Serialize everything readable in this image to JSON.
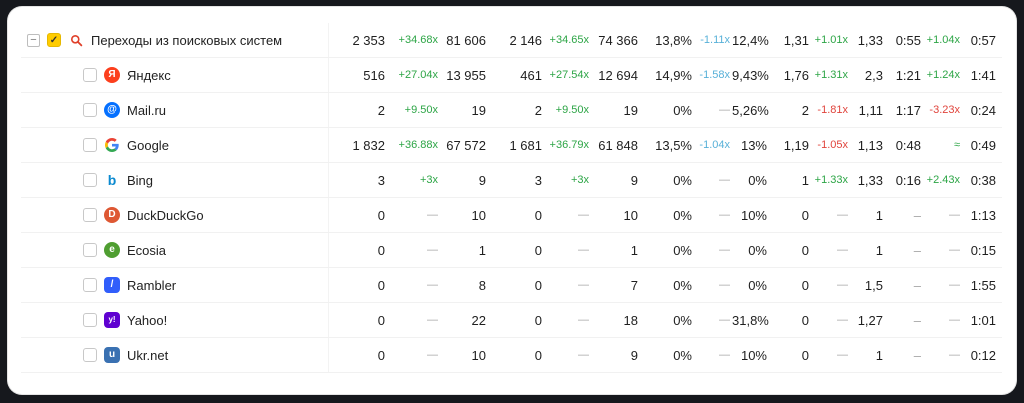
{
  "colors": {
    "positive_change": "#2da546",
    "negative_change": "#e0443c",
    "bounce_decrease": "#57b0d8",
    "no_data_dash": "#a6a6a6",
    "value_text": "#1f1f1f",
    "row_border": "#f1f1f1",
    "card_background": "#ffffff",
    "page_background": "#16181d",
    "checkbox_checked": "#ffcc00",
    "magnifier": "#e0402a"
  },
  "columns": [
    "visits-a",
    "visits-change",
    "visits-b",
    "visitors-a",
    "visitors-change",
    "visitors-b",
    "bounce-a",
    "bounce-change",
    "bounce-b",
    "depth-a",
    "depth-change",
    "depth-b",
    "time-a",
    "time-change",
    "time-b"
  ],
  "group": {
    "label": "Переходы из поисковых систем",
    "icon": "search-icon",
    "checked": true,
    "collapse_glyph": "−",
    "check_glyph": "✓",
    "cells": [
      "2 353|d",
      "+34.68x|g",
      "81 606|d",
      "2 146|d",
      "+34.65x|g",
      "74 366|d",
      "13,8%|d",
      "-1.11x|b",
      "12,4%|d",
      "1,31|d",
      "+1.01x|g",
      "1,33|d",
      "0:55|d",
      "+1.04x|g",
      "0:57|d"
    ]
  },
  "rows": [
    {
      "label": "Яндекс",
      "icon": "yandex-icon",
      "cells": [
        "516|d",
        "+27.04x|g",
        "13 955|d",
        "461|d",
        "+27.54x|g",
        "12 694|d",
        "14,9%|d",
        "-1.58x|b",
        "9,43%|d",
        "1,76|d",
        "+1.31x|g",
        "2,3|d",
        "1:21|d",
        "+1.24x|g",
        "1:41|d"
      ]
    },
    {
      "label": "Mail.ru",
      "icon": "mail-ru-icon",
      "cells": [
        "2|d",
        "+9.50x|g",
        "19|d",
        "2|d",
        "+9.50x|g",
        "19|d",
        "0%|d",
        "—|x",
        "5,26%|d",
        "2|d",
        "-1.81x|r",
        "1,11|d",
        "1:17|d",
        "-3.23x|r",
        "0:24|d"
      ]
    },
    {
      "label": "Google",
      "icon": "google-icon",
      "cells": [
        "1 832|d",
        "+36.88x|g",
        "67 572|d",
        "1 681|d",
        "+36.79x|g",
        "61 848|d",
        "13,5%|d",
        "-1.04x|b",
        "13%|d",
        "1,19|d",
        "-1.05x|r",
        "1,13|d",
        "0:48|d",
        "≈|g",
        "0:49|d"
      ]
    },
    {
      "label": "Bing",
      "icon": "bing-icon",
      "cells": [
        "3|d",
        "+3x|g",
        "9|d",
        "3|d",
        "+3x|g",
        "9|d",
        "0%|d",
        "—|x",
        "0%|d",
        "1|d",
        "+1.33x|g",
        "1,33|d",
        "0:16|d",
        "+2.43x|g",
        "0:38|d"
      ]
    },
    {
      "label": "DuckDuckGo",
      "icon": "duckduckgo-icon",
      "cells": [
        "0|d",
        "—|x",
        "10|d",
        "0|d",
        "—|x",
        "10|d",
        "0%|d",
        "—|x",
        "10%|d",
        "0|d",
        "—|x",
        "1|d",
        "–|x",
        "—|x",
        "1:13|d"
      ]
    },
    {
      "label": "Ecosia",
      "icon": "ecosia-icon",
      "cells": [
        "0|d",
        "—|x",
        "1|d",
        "0|d",
        "—|x",
        "1|d",
        "0%|d",
        "—|x",
        "0%|d",
        "0|d",
        "—|x",
        "1|d",
        "–|x",
        "—|x",
        "0:15|d"
      ]
    },
    {
      "label": "Rambler",
      "icon": "rambler-icon",
      "cells": [
        "0|d",
        "—|x",
        "8|d",
        "0|d",
        "—|x",
        "7|d",
        "0%|d",
        "—|x",
        "0%|d",
        "0|d",
        "—|x",
        "1,5|d",
        "–|x",
        "—|x",
        "1:55|d"
      ]
    },
    {
      "label": "Yahoo!",
      "icon": "yahoo-icon",
      "cells": [
        "0|d",
        "—|x",
        "22|d",
        "0|d",
        "—|x",
        "18|d",
        "0%|d",
        "—|x",
        "31,8%|d",
        "0|d",
        "—|x",
        "1,27|d",
        "–|x",
        "—|x",
        "1:01|d"
      ]
    },
    {
      "label": "Ukr.net",
      "icon": "ukrnet-icon",
      "cells": [
        "0|d",
        "—|x",
        "10|d",
        "0|d",
        "—|x",
        "9|d",
        "0%|d",
        "—|x",
        "10%|d",
        "0|d",
        "—|x",
        "1|d",
        "–|x",
        "—|x",
        "0:12|d"
      ]
    }
  ],
  "icons": {
    "search-icon": {
      "type": "magnifier"
    },
    "yandex-icon": {
      "glyph": "Я",
      "bg": "#fc3f1d",
      "shape": "circle"
    },
    "mail-ru-icon": {
      "glyph": "@",
      "bg": "#0470ff",
      "shape": "circle"
    },
    "google-icon": {
      "type": "google-g"
    },
    "bing-icon": {
      "glyph": "b",
      "fg": "#0b8ad0"
    },
    "duckduckgo-icon": {
      "glyph": "D",
      "bg": "#de5833",
      "shape": "circle"
    },
    "ecosia-icon": {
      "glyph": "e",
      "bg": "#4f9e31",
      "shape": "circle"
    },
    "rambler-icon": {
      "glyph": "/",
      "bg": "#315efb"
    },
    "yahoo-icon": {
      "glyph": "y!",
      "bg": "#5f01d1"
    },
    "ukrnet-icon": {
      "glyph": "u",
      "bg": "#3a71b2"
    }
  }
}
